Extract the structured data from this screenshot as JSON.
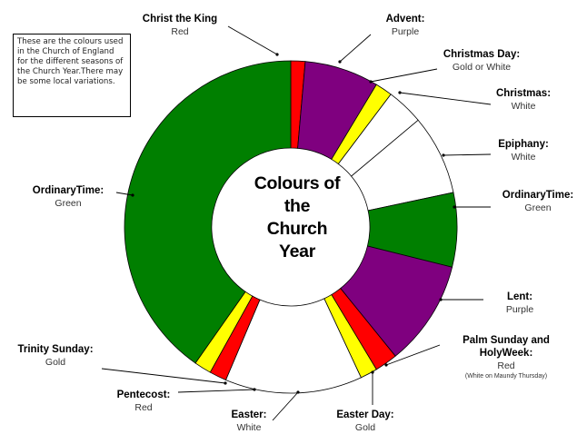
{
  "colors": {
    "red": "#ff0000",
    "purple": "#7f007f",
    "yellow": "#ffff00",
    "white": "#ffffff",
    "green": "#007f00",
    "outline": "#000000"
  },
  "note": "These are the colours used in the Church of England for the different seasons of the Church Year.There may be some local variations.",
  "center_title": [
    "Colours of",
    "the",
    "Church",
    "Year"
  ],
  "segments": [
    {
      "season": "Christ the King",
      "color": "red",
      "start": 0,
      "end": 5
    },
    {
      "season": "Advent",
      "color": "purple",
      "start": 5,
      "end": 31
    },
    {
      "season": "Christmas Day",
      "color": "yellow",
      "start": 31,
      "end": 37
    },
    {
      "season": "Christmas",
      "color": "white",
      "start": 37,
      "end": 50
    },
    {
      "season": "Epiphany",
      "color": "white",
      "start": 50,
      "end": 78
    },
    {
      "season": "Ordinary Time",
      "color": "green",
      "start": 78,
      "end": 104
    },
    {
      "season": "Lent",
      "color": "purple",
      "start": 104,
      "end": 141
    },
    {
      "season": "Palm Sunday and Holy Week",
      "color": "red",
      "start": 141,
      "end": 149
    },
    {
      "season": "Easter Day",
      "color": "yellow",
      "start": 149,
      "end": 155
    },
    {
      "season": "Easter",
      "color": "white",
      "start": 155,
      "end": 203
    },
    {
      "season": "Pentecost",
      "color": "red",
      "start": 203,
      "end": 209
    },
    {
      "season": "Trinity Sunday",
      "color": "yellow",
      "start": 209,
      "end": 215
    },
    {
      "season": "Ordinary Time",
      "color": "green",
      "start": 215,
      "end": 360
    }
  ],
  "labels": [
    {
      "id": "christ-the-king",
      "name": "Christ the King",
      "colour": "Red"
    },
    {
      "id": "advent",
      "name": "Advent:",
      "colour": "Purple"
    },
    {
      "id": "christmas-day",
      "name": "Christmas Day:",
      "colour": "Gold or White"
    },
    {
      "id": "christmas",
      "name": "Christmas:",
      "colour": "White"
    },
    {
      "id": "epiphany",
      "name": "Epiphany:",
      "colour": "White"
    },
    {
      "id": "ordinary-time-right",
      "name": "OrdinaryTime:",
      "colour": "Green"
    },
    {
      "id": "lent",
      "name": "Lent:",
      "colour": "Purple"
    },
    {
      "id": "palm-sunday",
      "name": "Palm Sunday and HolyWeek:",
      "colour": "Red",
      "sub": "(White on Maundy Thursday)"
    },
    {
      "id": "easter-day",
      "name": "Easter Day:",
      "colour": "Gold"
    },
    {
      "id": "easter",
      "name": "Easter:",
      "colour": "White"
    },
    {
      "id": "pentecost",
      "name": "Pentecost:",
      "colour": "Red"
    },
    {
      "id": "trinity-sunday",
      "name": "Trinity Sunday:",
      "colour": "Gold"
    },
    {
      "id": "ordinary-time-left",
      "name": "OrdinaryTime:",
      "colour": "Green"
    }
  ]
}
